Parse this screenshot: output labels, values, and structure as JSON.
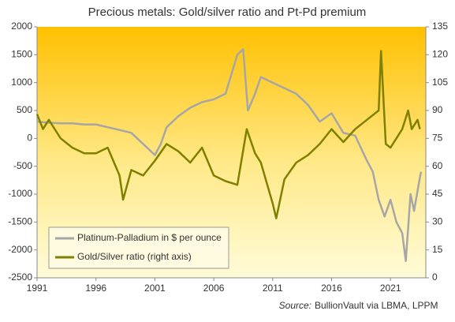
{
  "chart_data": {
    "type": "line",
    "title": "Precious metals: Gold/silver ratio and Pt-Pd premium",
    "source_label": "Source:",
    "source": "BullionVault via LBMA, LPPM",
    "xlim": [
      1991,
      2024
    ],
    "xticks": [
      1991,
      1996,
      2001,
      2006,
      2011,
      2016,
      2021
    ],
    "ylim": [
      -2500,
      2000
    ],
    "yticks": [
      -2500,
      -2000,
      -1500,
      -1000,
      -500,
      0,
      500,
      1000,
      1500,
      2000
    ],
    "y2lim": [
      0,
      135
    ],
    "y2ticks": [
      0,
      15,
      30,
      45,
      60,
      75,
      90,
      105,
      120,
      135
    ],
    "legend": "lower left",
    "series": [
      {
        "name": "Platinum-Palladium in $ per ounce",
        "color": "#a6a6a6",
        "x": [
          1991,
          1992,
          1993,
          1994,
          1995,
          1996,
          1997,
          1998,
          1999,
          2000,
          2001,
          2001.5,
          2002,
          2003,
          2004,
          2005,
          2006,
          2007,
          2008,
          2008.5,
          2008.9,
          2009.5,
          2010,
          2011,
          2012,
          2013,
          2014,
          2015,
          2016,
          2017,
          2018,
          2019,
          2019.5,
          2020,
          2020.5,
          2021,
          2021.5,
          2022,
          2022.3,
          2022.7,
          2023,
          2023.5,
          2023.6
        ],
        "values": [
          300,
          280,
          270,
          270,
          250,
          250,
          200,
          150,
          100,
          -100,
          -300,
          -100,
          200,
          400,
          550,
          650,
          700,
          800,
          1500,
          1600,
          500,
          800,
          1100,
          1000,
          900,
          800,
          600,
          300,
          450,
          100,
          50,
          -400,
          -600,
          -1100,
          -1400,
          -1100,
          -1500,
          -1700,
          -2200,
          -1000,
          -1300,
          -700,
          -600
        ]
      },
      {
        "name": "Gold/Silver ratio (right axis)",
        "color": "#808000",
        "axis": "y2",
        "x": [
          1991,
          1991.5,
          1992,
          1993,
          1994,
          1995,
          1996,
          1997,
          1998,
          1998.3,
          1999,
          2000,
          2001,
          2002,
          2003,
          2004,
          2005,
          2006,
          2007,
          2008,
          2008.8,
          2009.5,
          2010,
          2011,
          2011.3,
          2012,
          2013,
          2014,
          2015,
          2016,
          2017,
          2018,
          2019,
          2020,
          2020.2,
          2020.6,
          2021,
          2022,
          2022.5,
          2022.8,
          2023.3,
          2023.5
        ],
        "values": [
          88,
          80,
          85,
          75,
          70,
          67,
          67,
          70,
          55,
          42,
          58,
          55,
          63,
          72,
          68,
          62,
          70,
          55,
          52,
          50,
          80,
          67,
          62,
          40,
          32,
          53,
          62,
          66,
          72,
          80,
          73,
          80,
          85,
          90,
          122,
          72,
          70,
          80,
          90,
          80,
          85,
          80
        ]
      }
    ]
  }
}
